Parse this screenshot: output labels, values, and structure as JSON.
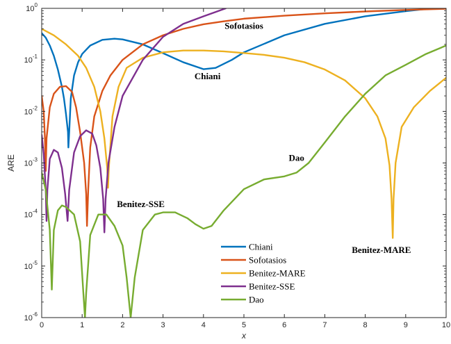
{
  "chart_data": {
    "type": "line",
    "title": "",
    "xlabel": "x",
    "ylabel": "ARE",
    "xlim": [
      0,
      10
    ],
    "ylim": [
      1e-06,
      1
    ],
    "yscale": "log",
    "grid": false,
    "legend_position": "bottom-center",
    "x_ticks": [
      "0",
      "1",
      "2",
      "3",
      "4",
      "5",
      "6",
      "7",
      "8",
      "9",
      "10"
    ],
    "y_ticks": [
      {
        "base": "10",
        "exp": "-6"
      },
      {
        "base": "10",
        "exp": "-5"
      },
      {
        "base": "10",
        "exp": "-4"
      },
      {
        "base": "10",
        "exp": "-3"
      },
      {
        "base": "10",
        "exp": "-2"
      },
      {
        "base": "10",
        "exp": "-1"
      },
      {
        "base": "10",
        "exp": "0"
      }
    ],
    "series": [
      {
        "name": "Chiani",
        "color": "#0072BD",
        "points": [
          [
            0,
            0.33
          ],
          [
            0.1,
            0.27
          ],
          [
            0.2,
            0.19
          ],
          [
            0.3,
            0.12
          ],
          [
            0.4,
            0.065
          ],
          [
            0.5,
            0.03
          ],
          [
            0.55,
            0.018
          ],
          [
            0.6,
            0.009
          ],
          [
            0.65,
            0.004
          ],
          [
            0.66,
            0.002
          ],
          [
            0.68,
            0.004
          ],
          [
            0.72,
            0.018
          ],
          [
            0.8,
            0.05
          ],
          [
            0.9,
            0.09
          ],
          [
            1.0,
            0.13
          ],
          [
            1.2,
            0.19
          ],
          [
            1.5,
            0.245
          ],
          [
            1.8,
            0.258
          ],
          [
            2.0,
            0.25
          ],
          [
            2.5,
            0.2
          ],
          [
            3.0,
            0.135
          ],
          [
            3.5,
            0.09
          ],
          [
            4.0,
            0.066
          ],
          [
            4.3,
            0.07
          ],
          [
            4.7,
            0.1
          ],
          [
            5.0,
            0.14
          ],
          [
            6.0,
            0.3
          ],
          [
            7.0,
            0.5
          ],
          [
            8.0,
            0.7
          ],
          [
            9.0,
            0.88
          ],
          [
            9.5,
            0.97
          ],
          [
            10,
            1.0
          ]
        ]
      },
      {
        "name": "Sofotasios",
        "color": "#D95319",
        "points": [
          [
            0,
            0.02
          ],
          [
            0.05,
            0.01
          ],
          [
            0.08,
            0.003
          ],
          [
            0.1,
            0.0007
          ],
          [
            0.12,
            0.003
          ],
          [
            0.2,
            0.012
          ],
          [
            0.3,
            0.022
          ],
          [
            0.45,
            0.03
          ],
          [
            0.6,
            0.031
          ],
          [
            0.75,
            0.024
          ],
          [
            0.85,
            0.012
          ],
          [
            0.95,
            0.004
          ],
          [
            1.05,
            0.001
          ],
          [
            1.1,
            0.00025
          ],
          [
            1.12,
            6e-05
          ],
          [
            1.15,
            0.0003
          ],
          [
            1.2,
            0.002
          ],
          [
            1.3,
            0.008
          ],
          [
            1.5,
            0.025
          ],
          [
            1.7,
            0.05
          ],
          [
            2.0,
            0.1
          ],
          [
            2.5,
            0.2
          ],
          [
            3.0,
            0.3
          ],
          [
            3.5,
            0.4
          ],
          [
            4.0,
            0.49
          ],
          [
            4.5,
            0.56
          ],
          [
            5.0,
            0.63
          ],
          [
            6.0,
            0.72
          ],
          [
            7.0,
            0.8
          ],
          [
            8.0,
            0.87
          ],
          [
            9.0,
            0.93
          ],
          [
            10,
            0.98
          ]
        ]
      },
      {
        "name": "Benitez-MARE",
        "color": "#EDB120",
        "points": [
          [
            0,
            0.4
          ],
          [
            0.3,
            0.3
          ],
          [
            0.6,
            0.2
          ],
          [
            0.9,
            0.12
          ],
          [
            1.1,
            0.07
          ],
          [
            1.3,
            0.03
          ],
          [
            1.45,
            0.01
          ],
          [
            1.55,
            0.003
          ],
          [
            1.62,
            0.0008
          ],
          [
            1.64,
            0.00033
          ],
          [
            1.66,
            0.0008
          ],
          [
            1.75,
            0.008
          ],
          [
            1.9,
            0.03
          ],
          [
            2.1,
            0.07
          ],
          [
            2.5,
            0.11
          ],
          [
            3.0,
            0.14
          ],
          [
            3.5,
            0.152
          ],
          [
            4.0,
            0.152
          ],
          [
            4.5,
            0.146
          ],
          [
            5.0,
            0.136
          ],
          [
            5.5,
            0.125
          ],
          [
            6.0,
            0.11
          ],
          [
            6.5,
            0.09
          ],
          [
            7.0,
            0.065
          ],
          [
            7.5,
            0.04
          ],
          [
            8.0,
            0.018
          ],
          [
            8.3,
            0.008
          ],
          [
            8.5,
            0.003
          ],
          [
            8.6,
            0.0009
          ],
          [
            8.65,
            0.0002
          ],
          [
            8.68,
            3.5e-05
          ],
          [
            8.7,
            0.0002
          ],
          [
            8.75,
            0.001
          ],
          [
            8.9,
            0.005
          ],
          [
            9.2,
            0.012
          ],
          [
            9.6,
            0.025
          ],
          [
            10,
            0.045
          ]
        ]
      },
      {
        "name": "Benitez-SSE",
        "color": "#7E2F8E",
        "points": [
          [
            0,
            0.0035
          ],
          [
            0.05,
            0.0015
          ],
          [
            0.1,
            0.0003
          ],
          [
            0.12,
            7.5e-05
          ],
          [
            0.14,
            0.0003
          ],
          [
            0.2,
            0.0012
          ],
          [
            0.3,
            0.0018
          ],
          [
            0.4,
            0.0016
          ],
          [
            0.5,
            0.0008
          ],
          [
            0.58,
            0.00025
          ],
          [
            0.64,
            7.5e-05
          ],
          [
            0.68,
            0.0003
          ],
          [
            0.8,
            0.0016
          ],
          [
            0.95,
            0.0033
          ],
          [
            1.1,
            0.0043
          ],
          [
            1.25,
            0.0037
          ],
          [
            1.35,
            0.0022
          ],
          [
            1.45,
            0.0008
          ],
          [
            1.52,
            0.0002
          ],
          [
            1.55,
            4.5e-05
          ],
          [
            1.58,
            0.0002
          ],
          [
            1.65,
            0.001
          ],
          [
            1.8,
            0.005
          ],
          [
            2.0,
            0.02
          ],
          [
            2.5,
            0.1
          ],
          [
            3.0,
            0.28
          ],
          [
            3.5,
            0.5
          ],
          [
            4.0,
            0.7
          ],
          [
            4.3,
            0.85
          ],
          [
            4.55,
            1.0
          ]
        ]
      },
      {
        "name": "Dao",
        "color": "#77AC30",
        "points": [
          [
            0,
            0.00065
          ],
          [
            0.1,
            0.0003
          ],
          [
            0.2,
            5e-05
          ],
          [
            0.25,
            3.5e-06
          ],
          [
            0.3,
            5e-05
          ],
          [
            0.4,
            0.00012
          ],
          [
            0.5,
            0.00015
          ],
          [
            0.6,
            0.00014
          ],
          [
            0.8,
            0.0001
          ],
          [
            0.95,
            3e-05
          ],
          [
            1.03,
            3e-06
          ],
          [
            1.07,
            1e-06
          ],
          [
            1.1,
            3e-06
          ],
          [
            1.2,
            4e-05
          ],
          [
            1.4,
            0.0001
          ],
          [
            1.6,
            0.0001
          ],
          [
            1.8,
            6e-05
          ],
          [
            2.0,
            2.5e-05
          ],
          [
            2.1,
            6e-06
          ],
          [
            2.2,
            1e-06
          ],
          [
            2.3,
            6e-06
          ],
          [
            2.5,
            5e-05
          ],
          [
            2.8,
            0.0001
          ],
          [
            3.0,
            0.00011
          ],
          [
            3.3,
            0.00011
          ],
          [
            3.6,
            8.5e-05
          ],
          [
            3.8,
            6.5e-05
          ],
          [
            4.0,
            5.3e-05
          ],
          [
            4.2,
            6e-05
          ],
          [
            4.5,
            0.00012
          ],
          [
            5.0,
            0.00031
          ],
          [
            5.5,
            0.00048
          ],
          [
            6.0,
            0.00055
          ],
          [
            6.3,
            0.00065
          ],
          [
            6.6,
            0.001
          ],
          [
            7.0,
            0.0025
          ],
          [
            7.5,
            0.008
          ],
          [
            8.0,
            0.022
          ],
          [
            8.5,
            0.05
          ],
          [
            9.0,
            0.08
          ],
          [
            9.5,
            0.13
          ],
          [
            10,
            0.19
          ]
        ]
      }
    ],
    "annotations": [
      {
        "text": "Sofotasios",
        "x": 5.0,
        "y": 0.4
      },
      {
        "text": "Chiani",
        "x": 4.1,
        "y": 0.042
      },
      {
        "text": "Dao",
        "x": 6.3,
        "y": 0.0011
      },
      {
        "text": "Benitez-SSE",
        "x": 2.45,
        "y": 0.00014
      },
      {
        "text": "Benitez-MARE",
        "x": 8.4,
        "y": 1.8e-05
      }
    ]
  }
}
